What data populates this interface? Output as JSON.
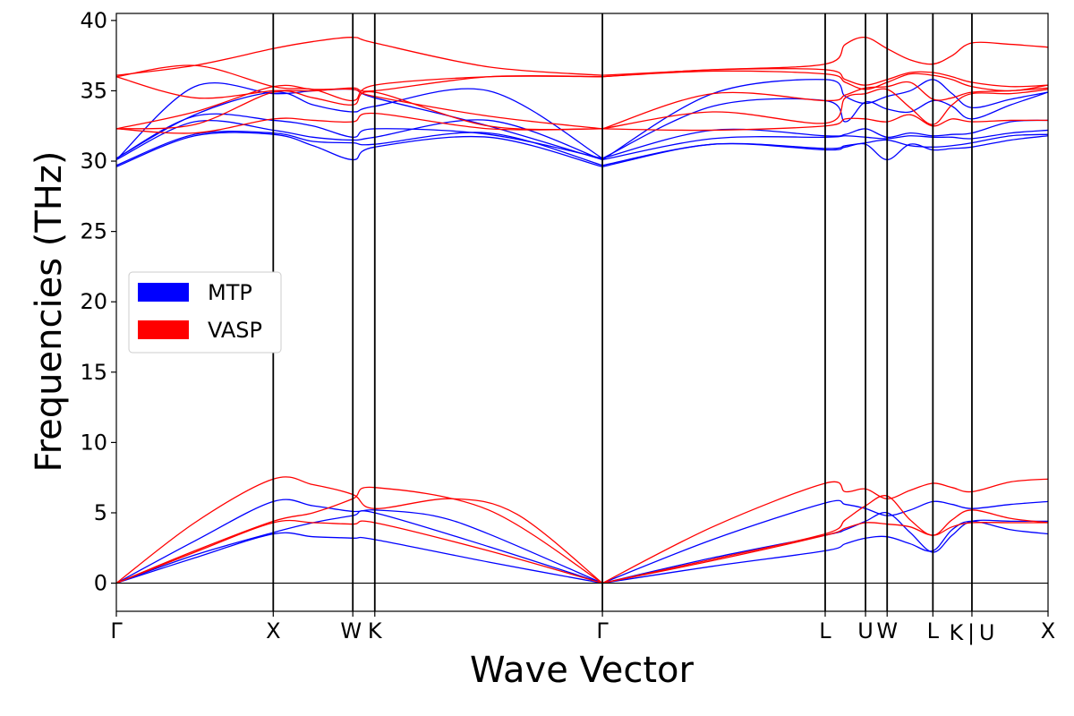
{
  "chart_data": {
    "type": "line",
    "title": "",
    "xlabel": "Wave Vector",
    "ylabel": "Frequencies (THz)",
    "ylim": [
      -2,
      40.5
    ],
    "yticks": [
      0,
      5,
      10,
      15,
      20,
      25,
      30,
      35,
      40
    ],
    "xlim": [
      0,
      10
    ],
    "high_symmetry_points": [
      {
        "label": "Γ",
        "x": 0.0
      },
      {
        "label": "X",
        "x": 1.684
      },
      {
        "label": "W",
        "x": 2.538
      },
      {
        "label": "K",
        "x": 2.774
      },
      {
        "label": "Γ",
        "x": 5.217
      },
      {
        "label": "L",
        "x": 7.608
      },
      {
        "label": "U",
        "x": 8.041
      },
      {
        "label": "W",
        "x": 8.273
      },
      {
        "label": "L",
        "x": 8.764
      },
      {
        "label": "K",
        "x": 9.183
      },
      {
        "label": "|",
        "x": 9.183
      },
      {
        "label": "U",
        "x": 9.183
      },
      {
        "label": "X",
        "x": 10.0
      }
    ],
    "legend": {
      "placement": "center-left",
      "entries": [
        {
          "name": "MTP",
          "color": "#0000ff"
        },
        {
          "name": "VASP",
          "color": "#ff0000"
        }
      ]
    },
    "series": [
      {
        "name": "MTP",
        "color": "#0000ff",
        "bands": [
          {
            "x": [
              0,
              0.842,
              1.684,
              2.111,
              2.538,
              2.774,
              3.995,
              5.217
            ],
            "y": [
              0,
              1.8,
              3.5,
              3.3,
              3.2,
              3.1,
              1.5,
              0
            ]
          },
          {
            "x": [
              0,
              0.842,
              1.684,
              2.111,
              2.538,
              2.774,
              3.995,
              5.217
            ],
            "y": [
              0,
              2.0,
              3.6,
              4.3,
              4.8,
              5.0,
              2.6,
              0
            ]
          },
          {
            "x": [
              0,
              0.842,
              1.684,
              2.111,
              2.538,
              2.774,
              3.4,
              3.995,
              5.217
            ],
            "y": [
              0,
              3.0,
              5.8,
              5.5,
              5.1,
              5.2,
              4.8,
              3.5,
              0
            ]
          },
          {
            "x": [
              0,
              0.842,
              1.684,
              2.111,
              2.538,
              2.774,
              3.995,
              5.217
            ],
            "y": [
              29.6,
              31.8,
              31.9,
              31.1,
              30.1,
              31.0,
              31.7,
              29.6
            ]
          },
          {
            "x": [
              0,
              0.842,
              1.684,
              2.111,
              2.538,
              2.774,
              3.995,
              5.217
            ],
            "y": [
              29.7,
              31.9,
              32.0,
              31.4,
              31.3,
              31.2,
              32.0,
              29.7
            ]
          },
          {
            "x": [
              0,
              0.842,
              1.684,
              2.111,
              2.538,
              2.774,
              3.995,
              5.217
            ],
            "y": [
              30.1,
              32.8,
              32.2,
              31.7,
              31.5,
              31.7,
              32.9,
              30.1
            ]
          },
          {
            "x": [
              0,
              0.842,
              1.684,
              2.111,
              2.538,
              2.774,
              3.995,
              5.217
            ],
            "y": [
              30.2,
              33.2,
              32.9,
              32.5,
              31.7,
              32.3,
              31.9,
              30.2
            ]
          },
          {
            "x": [
              0,
              0.842,
              1.684,
              2.111,
              2.538,
              2.774,
              3.995,
              5.217
            ],
            "y": [
              30.2,
              33.3,
              34.9,
              34.0,
              33.5,
              33.9,
              35.0,
              30.2
            ]
          },
          {
            "x": [
              0,
              0.842,
              1.684,
              2.111,
              2.538,
              2.774,
              3.995,
              5.217
            ],
            "y": [
              30.1,
              35.3,
              34.8,
              35.0,
              35.1,
              34.5,
              32.5,
              30.1
            ]
          },
          {
            "x": [
              5.217,
              6.4,
              7.608,
              7.824,
              8.041,
              8.273,
              8.52,
              8.764,
              8.97,
              9.183,
              9.6,
              10.0
            ],
            "y": [
              0,
              1.2,
              2.3,
              2.8,
              3.2,
              3.3,
              2.8,
              2.3,
              3.8,
              4.4,
              3.8,
              3.5
            ]
          },
          {
            "x": [
              5.217,
              6.4,
              7.608,
              7.824,
              8.041,
              8.273,
              8.52,
              8.764,
              8.97,
              9.183,
              9.6,
              10.0
            ],
            "y": [
              0,
              1.8,
              3.4,
              3.8,
              4.4,
              5.0,
              3.6,
              2.2,
              3.4,
              4.4,
              4.4,
              4.4
            ]
          },
          {
            "x": [
              5.217,
              6.4,
              7.608,
              7.824,
              8.041,
              8.273,
              8.52,
              8.764,
              8.97,
              9.183,
              9.6,
              10.0
            ],
            "y": [
              0,
              3.1,
              5.7,
              5.6,
              5.3,
              4.8,
              5.2,
              5.8,
              5.6,
              5.3,
              5.6,
              5.8
            ]
          },
          {
            "x": [
              5.217,
              6.4,
              7.608,
              7.824,
              8.041,
              8.273,
              8.52,
              8.764,
              8.97,
              9.183,
              9.6,
              10.0
            ],
            "y": [
              29.6,
              31.2,
              30.8,
              31.0,
              31.2,
              30.1,
              31.2,
              30.8,
              30.9,
              31.0,
              31.5,
              31.8
            ]
          },
          {
            "x": [
              5.217,
              6.4,
              7.608,
              7.824,
              8.041,
              8.273,
              8.52,
              8.764,
              8.97,
              9.183,
              9.6,
              10.0
            ],
            "y": [
              29.7,
              31.2,
              30.9,
              31.1,
              31.3,
              31.5,
              31.1,
              31.0,
              31.1,
              31.3,
              31.8,
              31.9
            ]
          },
          {
            "x": [
              5.217,
              6.4,
              7.608,
              7.824,
              8.041,
              8.273,
              8.52,
              8.764,
              8.97,
              9.183,
              9.6,
              10.0
            ],
            "y": [
              30.1,
              31.6,
              31.7,
              31.8,
              31.7,
              31.6,
              31.8,
              31.7,
              31.7,
              31.6,
              32.0,
              32.2
            ]
          },
          {
            "x": [
              5.217,
              6.4,
              7.608,
              7.824,
              8.041,
              8.273,
              8.52,
              8.764,
              8.97,
              9.183,
              9.6,
              10.0
            ],
            "y": [
              30.2,
              32.2,
              31.8,
              31.9,
              32.3,
              31.7,
              32.0,
              31.8,
              31.9,
              32.0,
              32.8,
              32.9
            ]
          },
          {
            "x": [
              5.217,
              6.4,
              7.608,
              7.824,
              8.041,
              8.273,
              8.52,
              8.764,
              8.97,
              9.183,
              9.6,
              10.0
            ],
            "y": [
              30.2,
              33.9,
              34.3,
              32.8,
              34.2,
              33.7,
              33.5,
              34.3,
              33.9,
              33.0,
              34.0,
              34.9
            ]
          },
          {
            "x": [
              5.217,
              6.4,
              7.608,
              7.824,
              8.041,
              8.273,
              8.52,
              8.764,
              8.97,
              9.183,
              9.6,
              10.0
            ],
            "y": [
              30.1,
              34.8,
              35.8,
              34.6,
              34.1,
              34.6,
              35.0,
              35.8,
              34.8,
              33.8,
              34.4,
              34.9
            ]
          }
        ]
      },
      {
        "name": "VASP",
        "color": "#ff0000",
        "bands": [
          {
            "x": [
              0,
              0.842,
              1.684,
              2.111,
              2.538,
              2.774,
              3.995,
              5.217
            ],
            "y": [
              0,
              2.2,
              4.3,
              4.3,
              4.2,
              4.3,
              2.3,
              0
            ]
          },
          {
            "x": [
              0,
              0.842,
              1.684,
              2.111,
              2.538,
              2.774,
              3.995,
              5.217
            ],
            "y": [
              0,
              2.3,
              4.4,
              5.0,
              6.0,
              6.8,
              5.2,
              0
            ]
          },
          {
            "x": [
              0,
              0.842,
              1.684,
              2.111,
              2.538,
              2.774,
              3.6,
              4.3,
              5.217
            ],
            "y": [
              0,
              4.3,
              7.4,
              7.0,
              6.3,
              5.3,
              6.0,
              4.9,
              0
            ]
          },
          {
            "x": [
              0,
              0.842,
              1.684,
              2.111,
              2.538,
              2.774,
              3.995,
              5.217
            ],
            "y": [
              32.3,
              32.0,
              33.0,
              32.9,
              32.8,
              33.4,
              32.3,
              32.3
            ]
          },
          {
            "x": [
              0,
              0.842,
              1.684,
              2.111,
              2.538,
              2.774,
              3.995,
              5.217
            ],
            "y": [
              32.3,
              32.6,
              34.9,
              34.5,
              34.0,
              34.9,
              32.5,
              32.3
            ]
          },
          {
            "x": [
              0,
              0.842,
              1.684,
              2.111,
              2.538,
              2.774,
              3.995,
              5.217
            ],
            "y": [
              32.3,
              33.5,
              35.3,
              35.1,
              35.1,
              34.6,
              33.2,
              32.3
            ]
          },
          {
            "x": [
              0,
              0.842,
              1.684,
              2.111,
              2.538,
              2.774,
              3.995,
              5.217
            ],
            "y": [
              36.0,
              34.5,
              35.0,
              35.0,
              35.2,
              35.0,
              36.0,
              36.0
            ]
          },
          {
            "x": [
              0,
              0.842,
              1.684,
              2.111,
              2.538,
              2.774,
              3.995,
              5.217
            ],
            "y": [
              36.0,
              36.8,
              35.3,
              35.1,
              34.3,
              35.4,
              36.0,
              36.0
            ]
          },
          {
            "x": [
              0,
              0.842,
              1.684,
              2.111,
              2.538,
              2.774,
              3.995,
              5.217
            ],
            "y": [
              36.1,
              36.8,
              38.0,
              38.5,
              38.8,
              38.4,
              36.7,
              36.1
            ]
          },
          {
            "x": [
              5.217,
              6.4,
              7.608,
              7.824,
              8.041,
              8.273,
              8.52,
              8.764,
              8.97,
              9.183,
              9.6,
              10.0
            ],
            "y": [
              0,
              1.6,
              3.4,
              3.9,
              4.3,
              4.2,
              4.0,
              3.4,
              4.0,
              4.3,
              4.3,
              4.3
            ]
          },
          {
            "x": [
              5.217,
              6.4,
              7.608,
              7.824,
              8.041,
              8.273,
              8.52,
              8.764,
              8.97,
              9.183,
              9.6,
              10.0
            ],
            "y": [
              0,
              1.7,
              3.5,
              4.5,
              5.5,
              6.2,
              4.5,
              3.4,
              4.5,
              5.2,
              4.6,
              4.3
            ]
          },
          {
            "x": [
              5.217,
              6.4,
              7.608,
              7.824,
              8.041,
              8.273,
              8.52,
              8.764,
              8.97,
              9.183,
              9.6,
              10.0
            ],
            "y": [
              0,
              4.0,
              7.1,
              6.5,
              6.7,
              6.0,
              6.6,
              7.1,
              6.8,
              6.5,
              7.2,
              7.4
            ]
          },
          {
            "x": [
              5.217,
              6.4,
              7.608,
              7.824,
              8.041,
              8.273,
              8.52,
              8.764,
              8.97,
              9.183,
              9.6,
              10.0
            ],
            "y": [
              32.3,
              32.2,
              32.5,
              33.0,
              33.0,
              32.8,
              33.3,
              32.5,
              33.0,
              32.8,
              32.9,
              32.9
            ]
          },
          {
            "x": [
              5.217,
              6.4,
              7.608,
              7.824,
              8.041,
              8.273,
              8.52,
              8.764,
              8.97,
              9.183,
              9.6,
              10.0
            ],
            "y": [
              32.3,
              33.5,
              32.7,
              34.5,
              34.8,
              35.1,
              33.8,
              32.6,
              34.0,
              34.8,
              34.8,
              35.1
            ]
          },
          {
            "x": [
              5.217,
              6.4,
              7.608,
              7.824,
              8.041,
              8.273,
              8.52,
              8.764,
              8.97,
              9.183,
              9.6,
              10.0
            ],
            "y": [
              32.3,
              34.8,
              34.3,
              34.7,
              35.2,
              35.3,
              35.6,
              34.4,
              34.5,
              34.9,
              35.0,
              35.2
            ]
          },
          {
            "x": [
              5.217,
              6.4,
              7.608,
              7.824,
              8.041,
              8.273,
              8.52,
              8.764,
              8.97,
              9.183,
              9.6,
              10.0
            ],
            "y": [
              36.0,
              36.4,
              36.2,
              35.6,
              35.1,
              35.6,
              36.2,
              36.1,
              35.8,
              35.3,
              35.0,
              35.4
            ]
          },
          {
            "x": [
              5.217,
              6.4,
              7.608,
              7.824,
              8.041,
              8.273,
              8.52,
              8.764,
              8.97,
              9.183,
              9.6,
              10.0
            ],
            "y": [
              36.0,
              36.5,
              36.5,
              35.8,
              35.4,
              35.8,
              36.3,
              36.3,
              36.0,
              35.6,
              35.3,
              35.4
            ]
          },
          {
            "x": [
              5.217,
              6.4,
              7.608,
              7.824,
              8.041,
              8.273,
              8.52,
              8.764,
              8.97,
              9.183,
              9.6,
              10.0
            ],
            "y": [
              36.1,
              36.5,
              36.9,
              38.3,
              38.8,
              38.0,
              37.2,
              36.9,
              37.5,
              38.4,
              38.3,
              38.1
            ]
          }
        ]
      }
    ]
  }
}
